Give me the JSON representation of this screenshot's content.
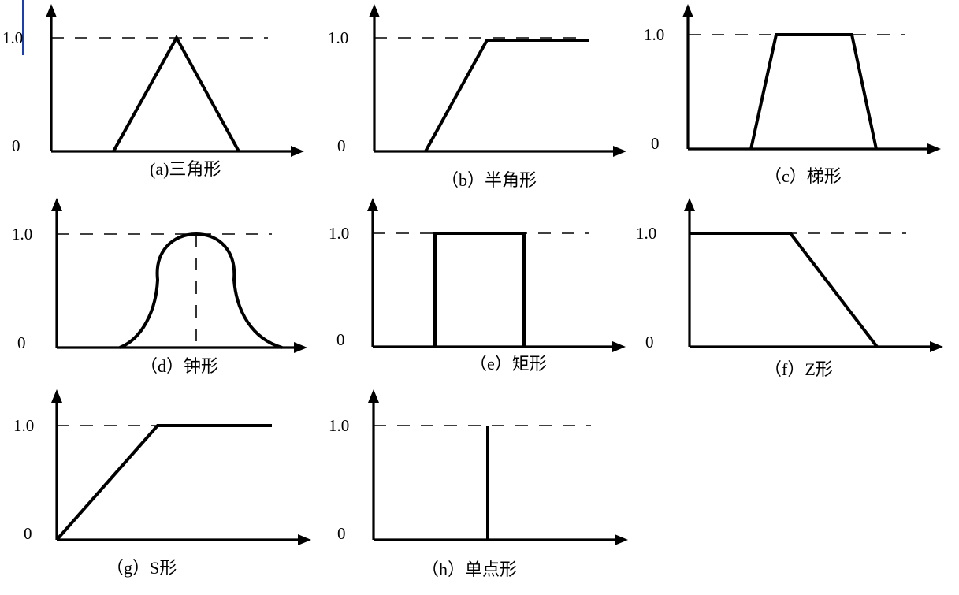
{
  "panels": [
    {
      "caption": "(a)三角形",
      "y_top": "1.0",
      "y_zero": "0",
      "shape": "triangle"
    },
    {
      "caption": "（b）半角形",
      "y_top": "1.0",
      "y_zero": "0",
      "shape": "half-trapezoid"
    },
    {
      "caption": "（c）梯形",
      "y_top": "1.0",
      "y_zero": "0",
      "shape": "trapezoid"
    },
    {
      "caption": "（d）钟形",
      "y_top": "1.0",
      "y_zero": "0",
      "shape": "bell"
    },
    {
      "caption": "（e）矩形",
      "y_top": "1.0",
      "y_zero": "0",
      "shape": "rectangle"
    },
    {
      "caption": "（f）Z形",
      "y_top": "1.0",
      "y_zero": "0",
      "shape": "z-shape"
    },
    {
      "caption": "（g）S形",
      "y_top": "1.0",
      "y_zero": "0",
      "shape": "s-shape"
    },
    {
      "caption": "（h）单点形",
      "y_top": "1.0",
      "y_zero": "0",
      "shape": "singleton"
    }
  ],
  "colors": {
    "line": "#000000",
    "background": "#ffffff",
    "cursor": "#1a3fb0"
  }
}
